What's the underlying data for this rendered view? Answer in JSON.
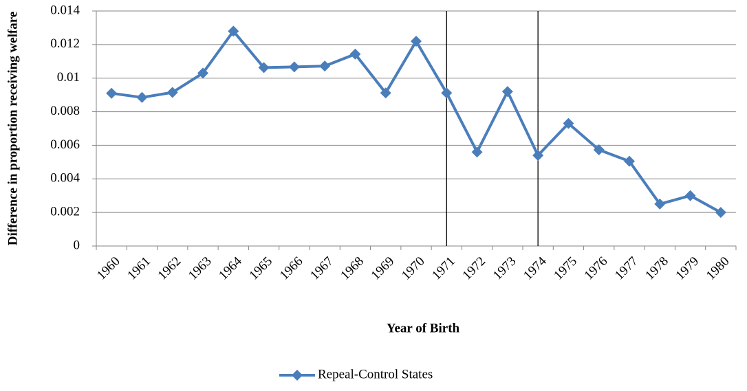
{
  "chart_data": {
    "type": "line",
    "y_label": "Difference in proportion receiving welfare",
    "x_label": "Year of Birth",
    "categories": [
      "1960",
      "1961",
      "1962",
      "1963",
      "1964",
      "1965",
      "1966",
      "1967",
      "1968",
      "1969",
      "1970",
      "1971",
      "1972",
      "1973",
      "1974",
      "1975",
      "1976",
      "1977",
      "1978",
      "1979",
      "1980"
    ],
    "series": [
      {
        "name": "Repeal-Control States",
        "color": "#4a7ebb",
        "values": [
          0.0091,
          0.00885,
          0.00915,
          0.0103,
          0.0128,
          0.01063,
          0.01067,
          0.01072,
          0.01143,
          0.00912,
          0.0122,
          0.00912,
          0.0056,
          0.0092,
          0.0054,
          0.0073,
          0.00573,
          0.00505,
          0.0025,
          0.003,
          0.002
        ]
      }
    ],
    "ylim": [
      0,
      0.014
    ],
    "yticks": [
      0,
      0.002,
      0.004,
      0.006,
      0.008,
      0.01,
      0.012,
      0.014
    ],
    "grid": true,
    "vlines": [
      1971,
      1974
    ],
    "legend": "bottom"
  }
}
